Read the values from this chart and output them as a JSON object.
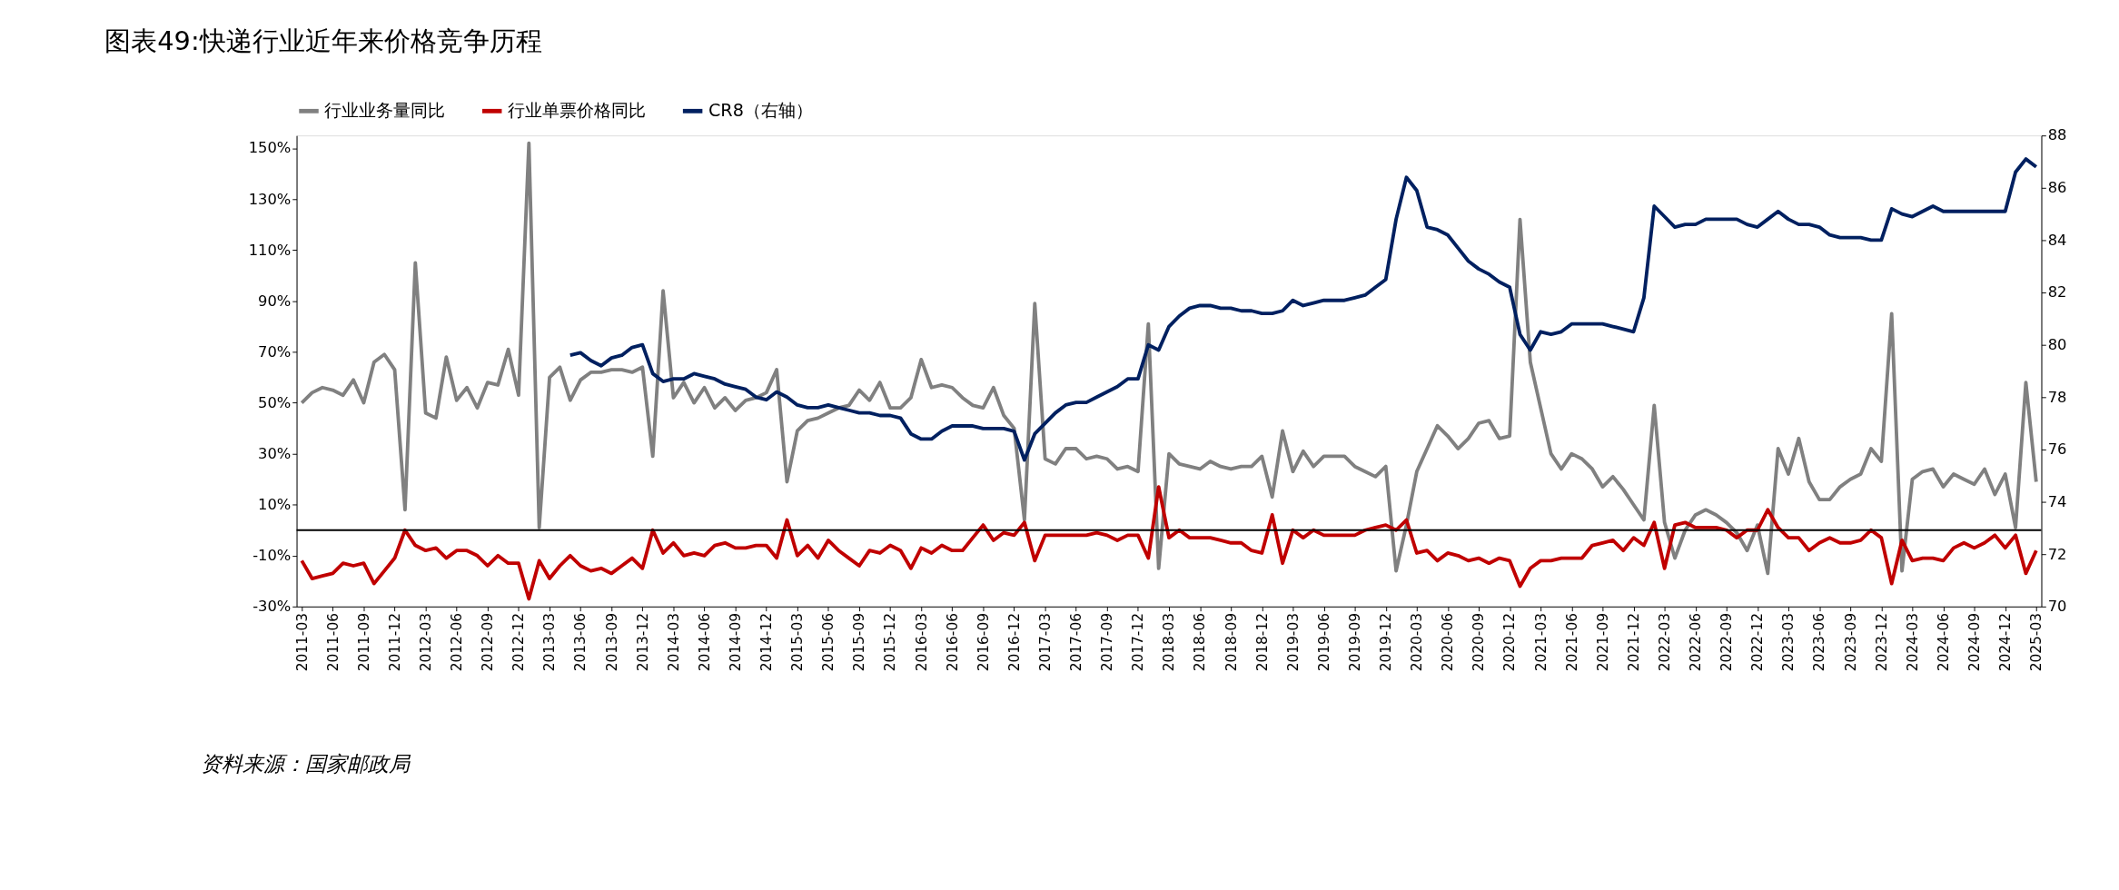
{
  "chart_data": {
    "type": "line",
    "title": "图表49:快递行业近年来价格竞争历程",
    "annotations": [
      "资料来源：国家邮政局"
    ],
    "categories": [
      "2011-03",
      null,
      null,
      "2011-06",
      null,
      null,
      "2011-09",
      null,
      null,
      "2011-12",
      null,
      null,
      "2012-03",
      null,
      null,
      "2012-06",
      null,
      null,
      "2012-09",
      null,
      null,
      "2012-12",
      null,
      null,
      "2013-03",
      null,
      null,
      "2013-06",
      null,
      null,
      "2013-09",
      null,
      null,
      "2013-12",
      null,
      null,
      "2014-03",
      null,
      null,
      "2014-06",
      null,
      null,
      "2014-09",
      null,
      null,
      "2014-12",
      null,
      null,
      "2015-03",
      null,
      null,
      "2015-06",
      null,
      null,
      "2015-09",
      null,
      null,
      "2015-12",
      null,
      null,
      "2016-03",
      null,
      null,
      "2016-06",
      null,
      null,
      "2016-09",
      null,
      null,
      "2016-12",
      null,
      null,
      "2017-03",
      null,
      null,
      "2017-06",
      null,
      null,
      "2017-09",
      null,
      null,
      "2017-12",
      null,
      null,
      "2018-03",
      null,
      null,
      "2018-06",
      null,
      null,
      "2018-09",
      null,
      null,
      "2018-12",
      null,
      null,
      "2019-03",
      null,
      null,
      "2019-06",
      null,
      null,
      "2019-09",
      null,
      null,
      "2019-12",
      null,
      null,
      "2020-03",
      null,
      null,
      "2020-06",
      null,
      null,
      "2020-09",
      null,
      null,
      "2020-12",
      null,
      null,
      "2021-03",
      null,
      null,
      "2021-06",
      null,
      null,
      "2021-09",
      null,
      null,
      "2021-12",
      null,
      null,
      "2022-03",
      null,
      null,
      "2022-06",
      null,
      null,
      "2022-09",
      null,
      null,
      "2022-12",
      null,
      null,
      "2023-03",
      null,
      null,
      "2023-06",
      null,
      null,
      "2023-09",
      null,
      null,
      "2023-12",
      null,
      null,
      "2024-03",
      null,
      null,
      "2024-06",
      null,
      null,
      "2024-09",
      null,
      null,
      "2024-12",
      null,
      null,
      "2025-03"
    ],
    "ylim": [
      -30,
      155
    ],
    "yticks": [
      {
        "value": -30,
        "label": "-30%"
      },
      {
        "value": -10,
        "label": "-10%"
      },
      {
        "value": 10,
        "label": "10%"
      },
      {
        "value": 30,
        "label": "30%"
      },
      {
        "value": 50,
        "label": "50%"
      },
      {
        "value": 70,
        "label": "70%"
      },
      {
        "value": 90,
        "label": "90%"
      },
      {
        "value": 110,
        "label": "110%"
      },
      {
        "value": 130,
        "label": "130%"
      },
      {
        "value": 150,
        "label": "150%"
      }
    ],
    "y2lim": [
      70,
      88
    ],
    "y2ticks": [
      70,
      72,
      74,
      76,
      78,
      80,
      82,
      84,
      86,
      88
    ],
    "legend": "top",
    "grid": false,
    "line_style": "solid",
    "ref_lines": [
      {
        "axis": "y",
        "value": 0,
        "color": "#000000"
      }
    ],
    "series": [
      {
        "name": "行业业务量同比",
        "color": "#808080",
        "values": [
          50,
          54,
          56,
          55,
          53,
          59,
          50,
          66,
          69,
          63,
          8,
          105,
          46,
          44,
          68,
          51,
          56,
          48,
          58,
          57,
          71,
          53,
          152,
          1,
          60,
          64,
          51,
          59,
          62,
          62,
          63,
          63,
          62,
          64,
          29,
          94,
          52,
          58,
          50,
          56,
          48,
          52,
          47,
          51,
          52,
          54,
          63,
          19,
          39,
          43,
          44,
          46,
          48,
          49,
          55,
          51,
          58,
          48,
          48,
          52,
          67,
          56,
          57,
          56,
          52,
          49,
          48,
          56,
          45,
          40,
          4,
          89,
          28,
          26,
          32,
          32,
          28,
          29,
          28,
          24,
          25,
          23,
          81,
          -15,
          30,
          26,
          25,
          24,
          27,
          25,
          24,
          25,
          25,
          29,
          13,
          39,
          23,
          31,
          25,
          29,
          29,
          29,
          25,
          23,
          21,
          25,
          -16,
          2,
          23,
          32,
          41,
          37,
          32,
          36,
          42,
          43,
          36,
          37,
          122,
          66,
          48,
          30,
          24,
          30,
          28,
          24,
          17,
          21,
          16,
          10,
          4,
          49,
          3,
          -11,
          0,
          6,
          8,
          6,
          3,
          -1,
          -8,
          2,
          -17,
          32,
          22,
          36,
          19,
          12,
          12,
          17,
          20,
          22,
          32,
          27,
          85,
          -16,
          20,
          23,
          24,
          17,
          22,
          20,
          18,
          24,
          14,
          22,
          1,
          58,
          19
        ]
      },
      {
        "name": "行业单票价格同比",
        "color": "#c00000",
        "values": [
          -12,
          -19,
          -18,
          -17,
          -13,
          -14,
          -13,
          -21,
          -16,
          -11,
          0,
          -6,
          -8,
          -7,
          -11,
          -8,
          -8,
          -10,
          -14,
          -10,
          -13,
          -13,
          -27,
          -12,
          -19,
          -14,
          -10,
          -14,
          -16,
          -15,
          -17,
          -14,
          -11,
          -15,
          0,
          -9,
          -5,
          -10,
          -9,
          -10,
          -6,
          -5,
          -7,
          -7,
          -6,
          -6,
          -11,
          4,
          -10,
          -6,
          -11,
          -4,
          -8,
          -11,
          -14,
          -8,
          -9,
          -6,
          -8,
          -15,
          -7,
          -9,
          -6,
          -8,
          -8,
          -3,
          2,
          -4,
          -1,
          -2,
          3,
          -12,
          -2,
          -2,
          -2,
          -2,
          -2,
          -1,
          -2,
          -4,
          -2,
          -2,
          -11,
          17,
          -3,
          0,
          -3,
          -3,
          -3,
          -4,
          -5,
          -5,
          -8,
          -9,
          6,
          -13,
          0,
          -3,
          0,
          -2,
          -2,
          -2,
          -2,
          0,
          1,
          2,
          0,
          4,
          -9,
          -8,
          -12,
          -9,
          -10,
          -12,
          -11,
          -13,
          -11,
          -12,
          -22,
          -15,
          -12,
          -12,
          -11,
          -11,
          -11,
          -6,
          -5,
          -4,
          -8,
          -3,
          -6,
          3,
          -15,
          2,
          3,
          1,
          1,
          1,
          0,
          -3,
          0,
          0,
          8,
          1,
          -3,
          -3,
          -8,
          -5,
          -3,
          -5,
          -5,
          -4,
          0,
          -3,
          -21,
          -4,
          -12,
          -11,
          -11,
          -12,
          -7,
          -5,
          -7,
          -5,
          -2,
          -7,
          -2,
          -17,
          -8
        ]
      },
      {
        "name": "CR8（右轴）",
        "color": "#002060",
        "axis": "y2",
        "values": [
          null,
          null,
          null,
          null,
          null,
          null,
          null,
          null,
          null,
          null,
          null,
          null,
          null,
          null,
          null,
          null,
          null,
          null,
          null,
          null,
          null,
          null,
          null,
          null,
          null,
          null,
          79.6,
          79.7,
          79.4,
          79.2,
          79.5,
          79.6,
          79.9,
          80.0,
          78.9,
          78.6,
          78.7,
          78.7,
          78.9,
          78.8,
          78.7,
          78.5,
          78.4,
          78.3,
          78.0,
          77.9,
          78.2,
          78.0,
          77.7,
          77.6,
          77.6,
          77.7,
          77.6,
          77.5,
          77.4,
          77.4,
          77.3,
          77.3,
          77.2,
          76.6,
          76.4,
          76.4,
          76.7,
          76.9,
          76.9,
          76.9,
          76.8,
          76.8,
          76.8,
          76.7,
          75.6,
          76.6,
          77.0,
          77.4,
          77.7,
          77.8,
          77.8,
          78.0,
          78.2,
          78.4,
          78.7,
          78.7,
          80.0,
          79.8,
          80.7,
          81.1,
          81.4,
          81.5,
          81.5,
          81.4,
          81.4,
          81.3,
          81.3,
          81.2,
          81.2,
          81.3,
          81.7,
          81.5,
          81.6,
          81.7,
          81.7,
          81.7,
          81.8,
          81.9,
          82.2,
          82.5,
          84.8,
          86.4,
          85.9,
          84.5,
          84.4,
          84.2,
          83.7,
          83.2,
          82.9,
          82.7,
          82.4,
          82.2,
          80.4,
          79.8,
          80.5,
          80.4,
          80.5,
          80.8,
          80.8,
          80.8,
          80.8,
          80.7,
          80.6,
          80.5,
          81.8,
          85.3,
          84.9,
          84.5,
          84.6,
          84.6,
          84.8,
          84.8,
          84.8,
          84.8,
          84.6,
          84.5,
          84.8,
          85.1,
          84.8,
          84.6,
          84.6,
          84.5,
          84.2,
          84.1,
          84.1,
          84.1,
          84.0,
          84.0,
          85.2,
          85.0,
          84.9,
          85.1,
          85.3,
          85.1,
          85.1,
          85.1,
          85.1,
          85.1,
          85.1,
          85.1,
          86.6,
          87.1,
          86.8
        ]
      }
    ]
  }
}
